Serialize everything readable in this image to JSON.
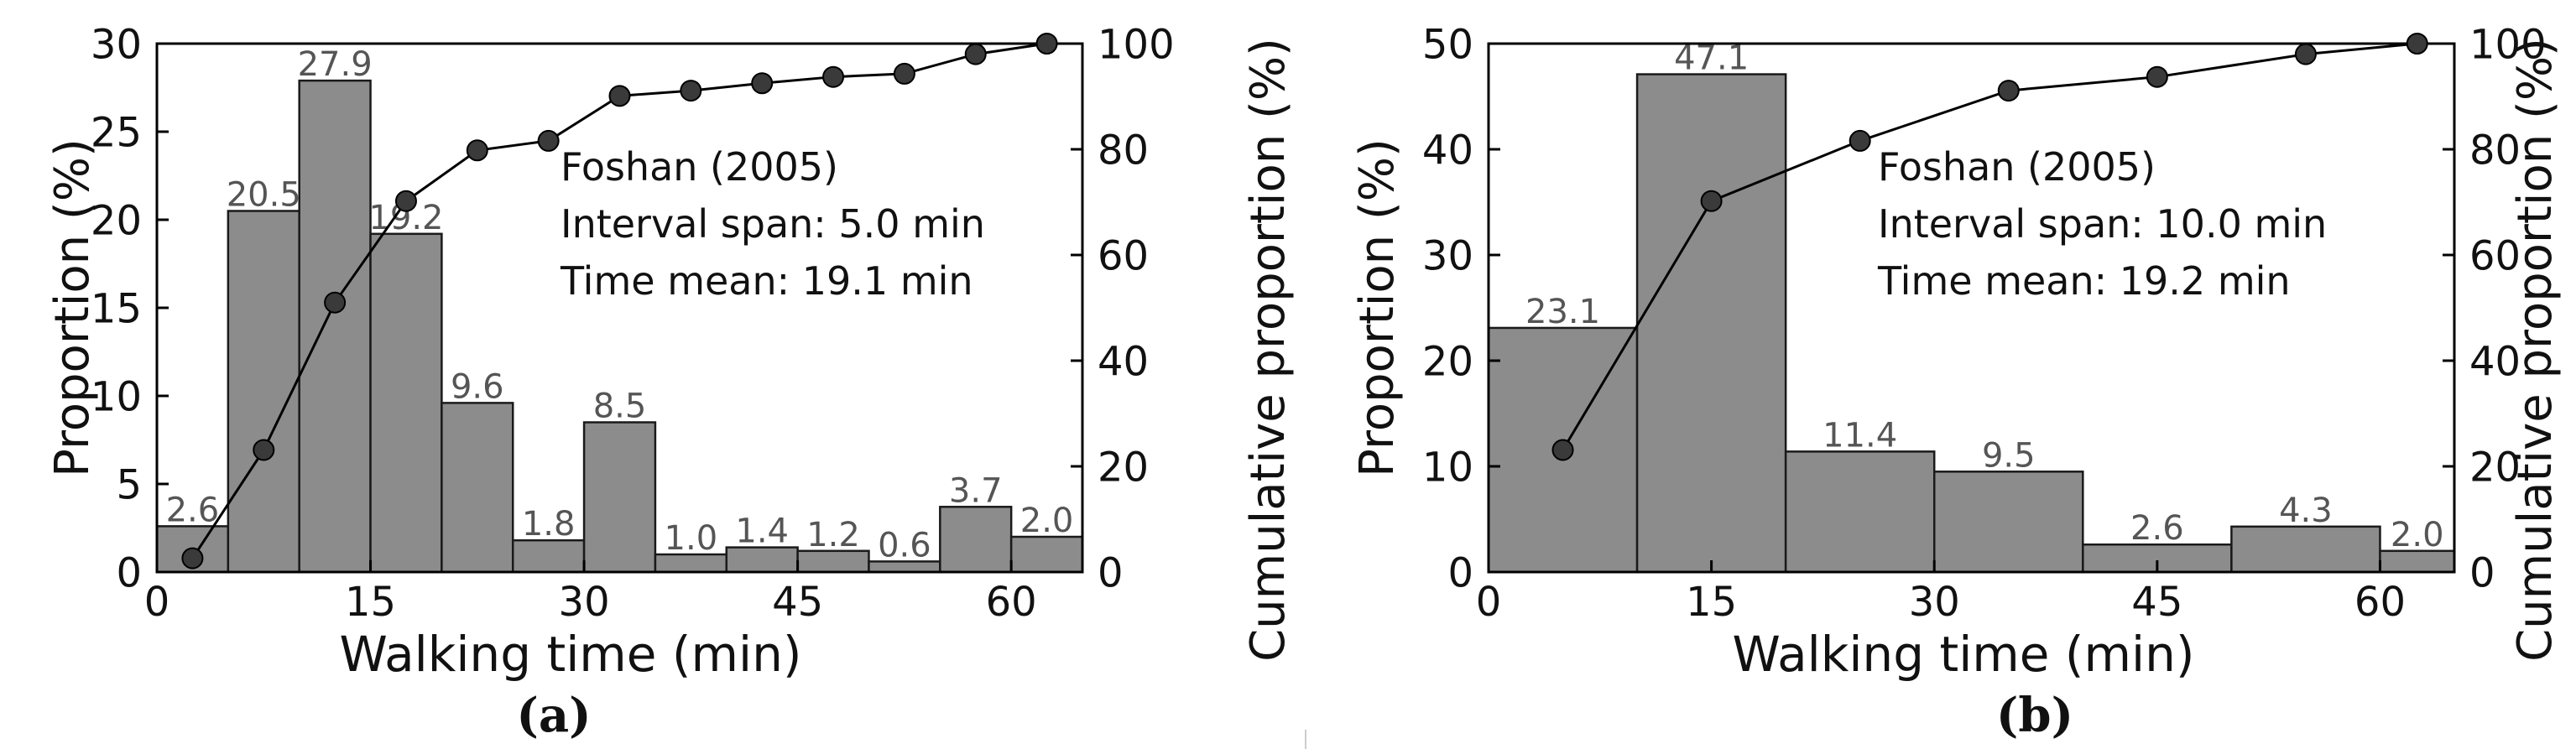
{
  "chart_data": [
    {
      "type": "bar",
      "panel_label": "(a)",
      "bin_edges": [
        0,
        5,
        10,
        15,
        20,
        25,
        30,
        35,
        40,
        45,
        50,
        55,
        60,
        65
      ],
      "values": [
        2.6,
        20.5,
        27.9,
        19.2,
        9.6,
        1.8,
        8.5,
        1.0,
        1.4,
        1.2,
        0.6,
        3.7,
        2.0
      ],
      "value_labels": [
        "2.6",
        "20.5",
        "27.9",
        "19.2",
        "9.6",
        "1.8",
        "8.5",
        "1.0",
        "1.4",
        "1.2",
        "0.6",
        "3.7",
        "2.0"
      ],
      "cumulative": {
        "x": [
          2.5,
          7.5,
          12.5,
          17.5,
          22.5,
          27.5,
          32.5,
          37.5,
          42.5,
          47.5,
          52.5,
          57.5,
          62.5
        ],
        "y": [
          2.6,
          23.1,
          51.0,
          70.2,
          79.8,
          81.6,
          90.1,
          91.1,
          92.5,
          93.7,
          94.3,
          98.0,
          100.0
        ]
      },
      "xlabel": "Walking time (min)",
      "ylabel": "Proportion (%)",
      "y2label": "Cumulative proportion (%)",
      "xlim": [
        0,
        65
      ],
      "ylim": [
        0,
        30
      ],
      "y2lim": [
        0,
        100
      ],
      "xticks": [
        "0",
        "15",
        "30",
        "45",
        "60"
      ],
      "xtick_values": [
        0,
        15,
        30,
        45,
        60
      ],
      "yticks": [
        "0",
        "5",
        "10",
        "15",
        "20",
        "25",
        "30"
      ],
      "ytick_values": [
        0,
        5,
        10,
        15,
        20,
        25,
        30
      ],
      "y2ticks": [
        "0",
        "20",
        "40",
        "60",
        "80",
        "100"
      ],
      "y2tick_values": [
        0,
        20,
        40,
        60,
        80,
        100
      ],
      "annotation": [
        "Foshan (2005)",
        "Interval span: 5.0 min",
        "Time mean: 19.1 min"
      ],
      "bar_color": "#8c8c8c",
      "line_color": "#000000",
      "marker_color": "#3a3a3a"
    },
    {
      "type": "bar",
      "panel_label": "(b)",
      "bin_edges": [
        0,
        10,
        20,
        30,
        40,
        50,
        60,
        65
      ],
      "values": [
        23.1,
        47.1,
        11.4,
        9.5,
        2.6,
        4.3,
        2.0
      ],
      "value_labels": [
        "23.1",
        "47.1",
        "11.4",
        "9.5",
        "2.6",
        "4.3",
        "2.0"
      ],
      "cumulative": {
        "x": [
          5,
          15,
          25,
          35,
          45,
          55,
          62.5
        ],
        "y": [
          23.1,
          70.2,
          81.6,
          91.1,
          93.7,
          98.0,
          100.0
        ]
      },
      "xlabel": "Walking time (min)",
      "ylabel": "Proportion (%)",
      "y2label": "Cumulative proportion (%)",
      "xlim": [
        0,
        65
      ],
      "ylim": [
        0,
        50
      ],
      "y2lim": [
        0,
        100
      ],
      "xticks": [
        "0",
        "15",
        "30",
        "45",
        "60"
      ],
      "xtick_values": [
        0,
        15,
        30,
        45,
        60
      ],
      "yticks": [
        "0",
        "10",
        "20",
        "30",
        "40",
        "50"
      ],
      "ytick_values": [
        0,
        10,
        20,
        30,
        40,
        50
      ],
      "y2ticks": [
        "0",
        "20",
        "40",
        "60",
        "80",
        "100"
      ],
      "y2tick_values": [
        0,
        20,
        40,
        60,
        80,
        100
      ],
      "annotation": [
        "Foshan (2005)",
        "Interval span: 10.0 min",
        "Time mean: 19.2 min"
      ],
      "bar_color": "#8c8c8c",
      "line_color": "#000000",
      "marker_color": "#3a3a3a"
    }
  ]
}
